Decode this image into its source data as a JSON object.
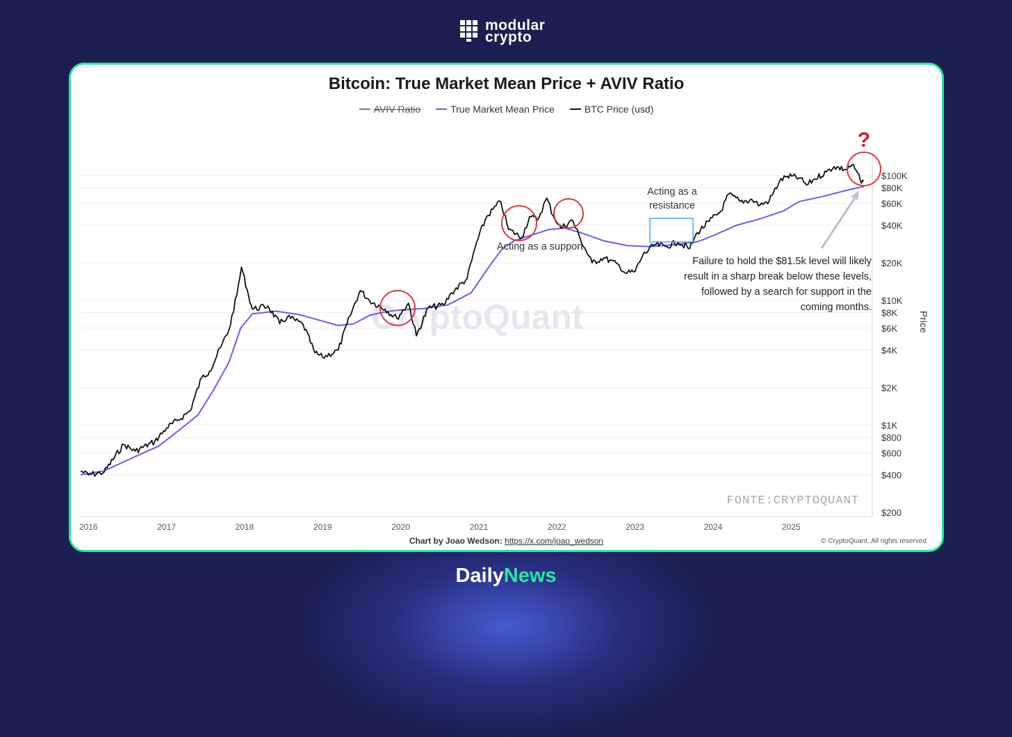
{
  "brand": {
    "line1": "modular",
    "line2": "crypto"
  },
  "footer_brand": {
    "part1": "Daily",
    "part2": "News"
  },
  "colors": {
    "background": "#1b1f52",
    "card_border": "#2de3a2",
    "btc": "#111111",
    "tmm": "#6b5ce6",
    "circle": "#d23a45",
    "resistance_box": "#4aa8e8"
  },
  "chart_data": {
    "type": "line",
    "title": "Bitcoin: True Market Mean Price + AVIV Ratio",
    "y_axis_label": "Price",
    "y_scale": "log",
    "ylim": [
      200,
      150000
    ],
    "xlim": [
      2015.9,
      2025.95
    ],
    "legend": [
      {
        "name": "AVIV Ratio",
        "style": "struck",
        "color": "#777777"
      },
      {
        "name": "True Market Mean Price",
        "color": "#6b5ce6"
      },
      {
        "name": "BTC Price (usd)",
        "color": "#111111"
      }
    ],
    "y_ticks": [
      {
        "v": 100000,
        "label": "$100K"
      },
      {
        "v": 80000,
        "label": "$80K"
      },
      {
        "v": 60000,
        "label": "$60K"
      },
      {
        "v": 40000,
        "label": "$40K"
      },
      {
        "v": 20000,
        "label": "$20K"
      },
      {
        "v": 10000,
        "label": "$10K"
      },
      {
        "v": 8000,
        "label": "$8K"
      },
      {
        "v": 6000,
        "label": "$6K"
      },
      {
        "v": 4000,
        "label": "$4K"
      },
      {
        "v": 2000,
        "label": "$2K"
      },
      {
        "v": 1000,
        "label": "$1K"
      },
      {
        "v": 800,
        "label": "$800"
      },
      {
        "v": 600,
        "label": "$600"
      },
      {
        "v": 400,
        "label": "$400"
      },
      {
        "v": 200,
        "label": "$200"
      }
    ],
    "x_ticks": [
      {
        "v": 2016.0,
        "label": "2016"
      },
      {
        "v": 2017.0,
        "label": "2017"
      },
      {
        "v": 2018.0,
        "label": "2018"
      },
      {
        "v": 2019.0,
        "label": "2019"
      },
      {
        "v": 2020.0,
        "label": "2020"
      },
      {
        "v": 2021.0,
        "label": "2021"
      },
      {
        "v": 2022.0,
        "label": "2022"
      },
      {
        "v": 2023.0,
        "label": "2023"
      },
      {
        "v": 2024.0,
        "label": "2024"
      },
      {
        "v": 2025.0,
        "label": "2025"
      }
    ],
    "series": [
      {
        "name": "BTC Price (usd)",
        "points": [
          [
            2015.9,
            430
          ],
          [
            2016.0,
            400
          ],
          [
            2016.2,
            420
          ],
          [
            2016.45,
            700
          ],
          [
            2016.6,
            620
          ],
          [
            2016.85,
            740
          ],
          [
            2017.0,
            950
          ],
          [
            2017.15,
            1100
          ],
          [
            2017.3,
            1300
          ],
          [
            2017.45,
            2400
          ],
          [
            2017.55,
            2700
          ],
          [
            2017.7,
            4300
          ],
          [
            2017.8,
            5800
          ],
          [
            2017.9,
            11000
          ],
          [
            2017.96,
            18500
          ],
          [
            2018.05,
            11000
          ],
          [
            2018.1,
            8500
          ],
          [
            2018.3,
            9000
          ],
          [
            2018.45,
            6500
          ],
          [
            2018.55,
            7400
          ],
          [
            2018.75,
            6400
          ],
          [
            2018.9,
            3800
          ],
          [
            2019.0,
            3500
          ],
          [
            2019.2,
            4000
          ],
          [
            2019.35,
            7500
          ],
          [
            2019.48,
            12000
          ],
          [
            2019.6,
            10000
          ],
          [
            2019.8,
            8500
          ],
          [
            2019.95,
            7200
          ],
          [
            2020.1,
            9500
          ],
          [
            2020.2,
            5200
          ],
          [
            2020.35,
            8700
          ],
          [
            2020.55,
            9200
          ],
          [
            2020.65,
            11500
          ],
          [
            2020.85,
            15000
          ],
          [
            2020.97,
            29000
          ],
          [
            2021.1,
            47000
          ],
          [
            2021.28,
            62000
          ],
          [
            2021.38,
            37000
          ],
          [
            2021.55,
            32000
          ],
          [
            2021.65,
            47000
          ],
          [
            2021.75,
            44000
          ],
          [
            2021.87,
            66000
          ],
          [
            2021.95,
            48000
          ],
          [
            2022.05,
            38000
          ],
          [
            2022.2,
            44000
          ],
          [
            2022.3,
            31000
          ],
          [
            2022.45,
            20000
          ],
          [
            2022.6,
            22000
          ],
          [
            2022.8,
            19000
          ],
          [
            2022.88,
            16500
          ],
          [
            2023.0,
            17000
          ],
          [
            2023.1,
            23000
          ],
          [
            2023.25,
            28000
          ],
          [
            2023.4,
            27000
          ],
          [
            2023.55,
            29500
          ],
          [
            2023.7,
            26000
          ],
          [
            2023.8,
            35000
          ],
          [
            2023.95,
            43000
          ],
          [
            2024.1,
            52000
          ],
          [
            2024.2,
            71000
          ],
          [
            2024.35,
            62000
          ],
          [
            2024.5,
            64000
          ],
          [
            2024.6,
            58000
          ],
          [
            2024.72,
            63000
          ],
          [
            2024.85,
            90000
          ],
          [
            2024.95,
            99000
          ],
          [
            2025.1,
            96000
          ],
          [
            2025.2,
            84000
          ],
          [
            2025.3,
            94000
          ],
          [
            2025.45,
            107000
          ],
          [
            2025.55,
            118000
          ],
          [
            2025.7,
            112000
          ],
          [
            2025.78,
            122000
          ],
          [
            2025.85,
            105000
          ],
          [
            2025.9,
            87000
          ],
          [
            2025.93,
            91000
          ]
        ]
      },
      {
        "name": "True Market Mean Price",
        "points": [
          [
            2015.9,
            400
          ],
          [
            2016.2,
            430
          ],
          [
            2016.6,
            560
          ],
          [
            2016.9,
            680
          ],
          [
            2017.1,
            850
          ],
          [
            2017.4,
            1200
          ],
          [
            2017.6,
            1900
          ],
          [
            2017.8,
            3200
          ],
          [
            2017.95,
            6000
          ],
          [
            2018.1,
            7800
          ],
          [
            2018.4,
            8200
          ],
          [
            2018.7,
            7700
          ],
          [
            2018.9,
            7100
          ],
          [
            2019.2,
            6300
          ],
          [
            2019.4,
            6500
          ],
          [
            2019.6,
            7600
          ],
          [
            2019.8,
            8100
          ],
          [
            2020.0,
            8400
          ],
          [
            2020.3,
            8600
          ],
          [
            2020.6,
            9200
          ],
          [
            2020.9,
            11500
          ],
          [
            2021.1,
            17500
          ],
          [
            2021.3,
            26000
          ],
          [
            2021.45,
            30000
          ],
          [
            2021.65,
            33000
          ],
          [
            2021.9,
            37000
          ],
          [
            2022.1,
            38000
          ],
          [
            2022.3,
            35000
          ],
          [
            2022.6,
            30000
          ],
          [
            2022.9,
            27500
          ],
          [
            2023.2,
            27000
          ],
          [
            2023.5,
            28000
          ],
          [
            2023.8,
            29500
          ],
          [
            2024.0,
            33000
          ],
          [
            2024.3,
            40000
          ],
          [
            2024.6,
            45000
          ],
          [
            2024.9,
            52000
          ],
          [
            2025.1,
            62000
          ],
          [
            2025.4,
            68000
          ],
          [
            2025.7,
            76000
          ],
          [
            2025.93,
            82000
          ]
        ]
      }
    ],
    "annotations": [
      {
        "text": "Acting as a support"
      },
      {
        "text": "Acting as a resistance"
      },
      {
        "text": "Failure to hold the $81.5k level will likely result in a sharp break below these levels, followed by a search for support in the coming months."
      },
      {
        "text": "?"
      }
    ],
    "watermarks": [
      "CryptoQuant",
      "FONTE:CRYPTOQUANT"
    ]
  },
  "footer": {
    "chart_by_label": "Chart by Joao Wedson:",
    "chart_by_link": "https://x.com/joao_wedson",
    "copyright": "© CryptoQuant. All rights reserved"
  }
}
